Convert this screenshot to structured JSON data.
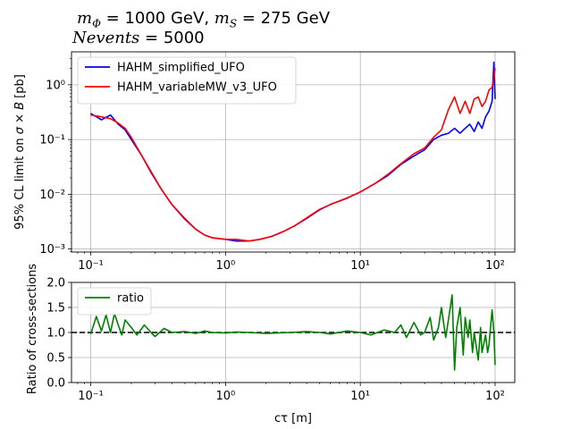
{
  "title": {
    "line1_parts": [
      "m",
      "Φ",
      " = 1000 GeV, ",
      "m",
      "S",
      " = 275 GeV"
    ],
    "line2_parts": [
      "Nevents",
      " = 5000"
    ]
  },
  "chart_data": [
    {
      "type": "line",
      "xscale": "log",
      "yscale": "log",
      "xlim": [
        0.072,
        140
      ],
      "ylim": [
        0.00088,
        4.0
      ],
      "xticks": [
        0.1,
        1,
        10,
        100
      ],
      "xtick_labels": [
        "10⁻¹",
        "10⁰",
        "10¹",
        "10²"
      ],
      "yticks": [
        0.001,
        0.01,
        0.1,
        1
      ],
      "ytick_labels": [
        "10⁻³",
        "10⁻²",
        "10⁻¹",
        "10⁰"
      ],
      "ylabel_parts": [
        "95% CL limit on ",
        "σ × B",
        " [pb]"
      ],
      "grid": true,
      "legend": "upper left",
      "colors": {
        "HAHM_simplified_UFO": "#0000ff",
        "HAHM_variableMW_v3_UFO": "#ff0000"
      },
      "series": [
        {
          "name": "HAHM_simplified_UFO",
          "color": "#0000ff",
          "x": [
            0.1,
            0.12,
            0.14,
            0.16,
            0.18,
            0.2,
            0.24,
            0.28,
            0.33,
            0.4,
            0.5,
            0.6,
            0.7,
            0.8,
            1.0,
            1.2,
            1.5,
            1.8,
            2.2,
            2.7,
            3.3,
            4.0,
            5.0,
            6.0,
            8.0,
            10.0,
            13.0,
            16.0,
            20.0,
            25.0,
            30.0,
            35.0,
            40.0,
            45.0,
            50.0,
            55.0,
            60.0,
            65.0,
            70.0,
            75.0,
            80.0,
            85.0,
            90.0,
            95.0,
            98.0,
            100.0
          ],
          "values": [
            0.3,
            0.23,
            0.28,
            0.19,
            0.15,
            0.1,
            0.05,
            0.025,
            0.013,
            0.0065,
            0.0035,
            0.0023,
            0.0018,
            0.0016,
            0.0015,
            0.0014,
            0.0014,
            0.0015,
            0.0017,
            0.0021,
            0.0027,
            0.0036,
            0.0052,
            0.0065,
            0.0085,
            0.011,
            0.016,
            0.022,
            0.035,
            0.05,
            0.065,
            0.1,
            0.12,
            0.13,
            0.16,
            0.13,
            0.16,
            0.19,
            0.14,
            0.21,
            0.16,
            0.26,
            0.33,
            0.5,
            2.6,
            0.55
          ]
        },
        {
          "name": "HAHM_variableMW_v3_UFO",
          "color": "#ff0000",
          "x": [
            0.1,
            0.12,
            0.14,
            0.16,
            0.18,
            0.2,
            0.24,
            0.28,
            0.33,
            0.4,
            0.5,
            0.6,
            0.7,
            0.8,
            1.0,
            1.2,
            1.5,
            1.8,
            2.2,
            2.7,
            3.3,
            4.0,
            5.0,
            6.0,
            8.0,
            10.0,
            13.0,
            16.0,
            20.0,
            25.0,
            30.0,
            35.0,
            40.0,
            45.0,
            50.0,
            55.0,
            60.0,
            65.0,
            70.0,
            75.0,
            80.0,
            85.0,
            90.0,
            95.0,
            98.0,
            100.0
          ],
          "values": [
            0.28,
            0.26,
            0.24,
            0.2,
            0.16,
            0.11,
            0.05,
            0.026,
            0.013,
            0.0065,
            0.0036,
            0.0023,
            0.0018,
            0.0016,
            0.0015,
            0.0015,
            0.0014,
            0.0015,
            0.0017,
            0.0021,
            0.0027,
            0.0037,
            0.0053,
            0.0065,
            0.0086,
            0.011,
            0.016,
            0.023,
            0.036,
            0.055,
            0.07,
            0.11,
            0.15,
            0.35,
            0.6,
            0.3,
            0.5,
            0.3,
            0.55,
            0.6,
            0.4,
            0.5,
            0.8,
            0.9,
            1.3,
            2.0
          ]
        }
      ]
    },
    {
      "type": "line",
      "xscale": "log",
      "xlim": [
        0.072,
        140
      ],
      "ylim": [
        0.0,
        2.0
      ],
      "xticks": [
        0.1,
        1,
        10,
        100
      ],
      "xtick_labels": [
        "10⁻¹",
        "10⁰",
        "10¹",
        "10²"
      ],
      "yticks": [
        0.0,
        0.5,
        1.0,
        1.5,
        2.0
      ],
      "ytick_labels": [
        "0.0",
        "0.5",
        "1.0",
        "1.5",
        "2.0"
      ],
      "xlabel": "cτ [m]",
      "ylabel": "Ratio of cross-sections",
      "grid": true,
      "legend": "upper left",
      "reference_line": {
        "y": 1.0,
        "style": "dashed",
        "color": "#000000"
      },
      "series": [
        {
          "name": "ratio",
          "color": "#008000",
          "x": [
            0.1,
            0.11,
            0.12,
            0.13,
            0.14,
            0.15,
            0.16,
            0.17,
            0.18,
            0.2,
            0.22,
            0.25,
            0.28,
            0.3,
            0.35,
            0.4,
            0.5,
            0.6,
            0.7,
            0.8,
            1.0,
            1.2,
            1.5,
            2.0,
            3.0,
            4.0,
            5.0,
            6.0,
            8.0,
            10.0,
            12.0,
            15.0,
            18.0,
            20.0,
            22.0,
            25.0,
            28.0,
            30.0,
            33.0,
            35.0,
            38.0,
            40.0,
            43.0,
            45.0,
            48.0,
            50.0,
            52.0,
            55.0,
            58.0,
            60.0,
            63.0,
            65.0,
            68.0,
            70.0,
            75.0,
            78.0,
            80.0,
            85.0,
            88.0,
            90.0,
            95.0,
            98.0,
            100.0
          ],
          "values": [
            0.97,
            1.32,
            1.03,
            1.35,
            1.0,
            1.38,
            1.15,
            0.95,
            1.25,
            1.1,
            0.95,
            1.15,
            1.0,
            0.92,
            1.08,
            1.0,
            1.02,
            0.98,
            1.03,
            1.0,
            0.99,
            1.01,
            1.0,
            0.98,
            1.0,
            1.02,
            1.0,
            0.97,
            1.03,
            1.0,
            0.95,
            1.05,
            1.0,
            1.15,
            0.9,
            1.2,
            0.95,
            1.0,
            1.3,
            0.85,
            1.1,
            1.5,
            0.9,
            1.25,
            1.75,
            0.25,
            1.1,
            1.5,
            0.55,
            1.3,
            0.9,
            1.25,
            0.6,
            1.0,
            0.45,
            1.1,
            0.6,
            0.95,
            0.6,
            0.75,
            1.45,
            1.0,
            0.35
          ]
        }
      ]
    }
  ]
}
